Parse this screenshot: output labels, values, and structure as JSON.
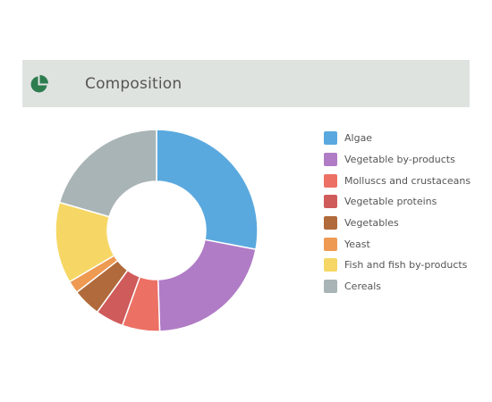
{
  "header": {
    "title": "Composition",
    "icon": "pie-chart-icon",
    "icon_color": "#2e7d4f"
  },
  "chart_data": {
    "type": "pie",
    "variant": "donut",
    "title": "",
    "legend_position": "right",
    "categories": [
      "Algae",
      "Vegetable by-products",
      "Molluscs and crustaceans",
      "Vegetable proteins",
      "Vegetables",
      "Yeast",
      "Fish and fish by-products",
      "Cereals"
    ],
    "values": [
      28,
      21.5,
      6,
      4.5,
      4.5,
      2,
      13,
      20.5
    ],
    "colors": [
      "#5aa9de",
      "#b07cc6",
      "#ec7064",
      "#d05b5b",
      "#b06a3b",
      "#ee9a52",
      "#f6d765",
      "#a8b4b5"
    ],
    "start_angle_deg": 0,
    "direction": "clockwise"
  }
}
